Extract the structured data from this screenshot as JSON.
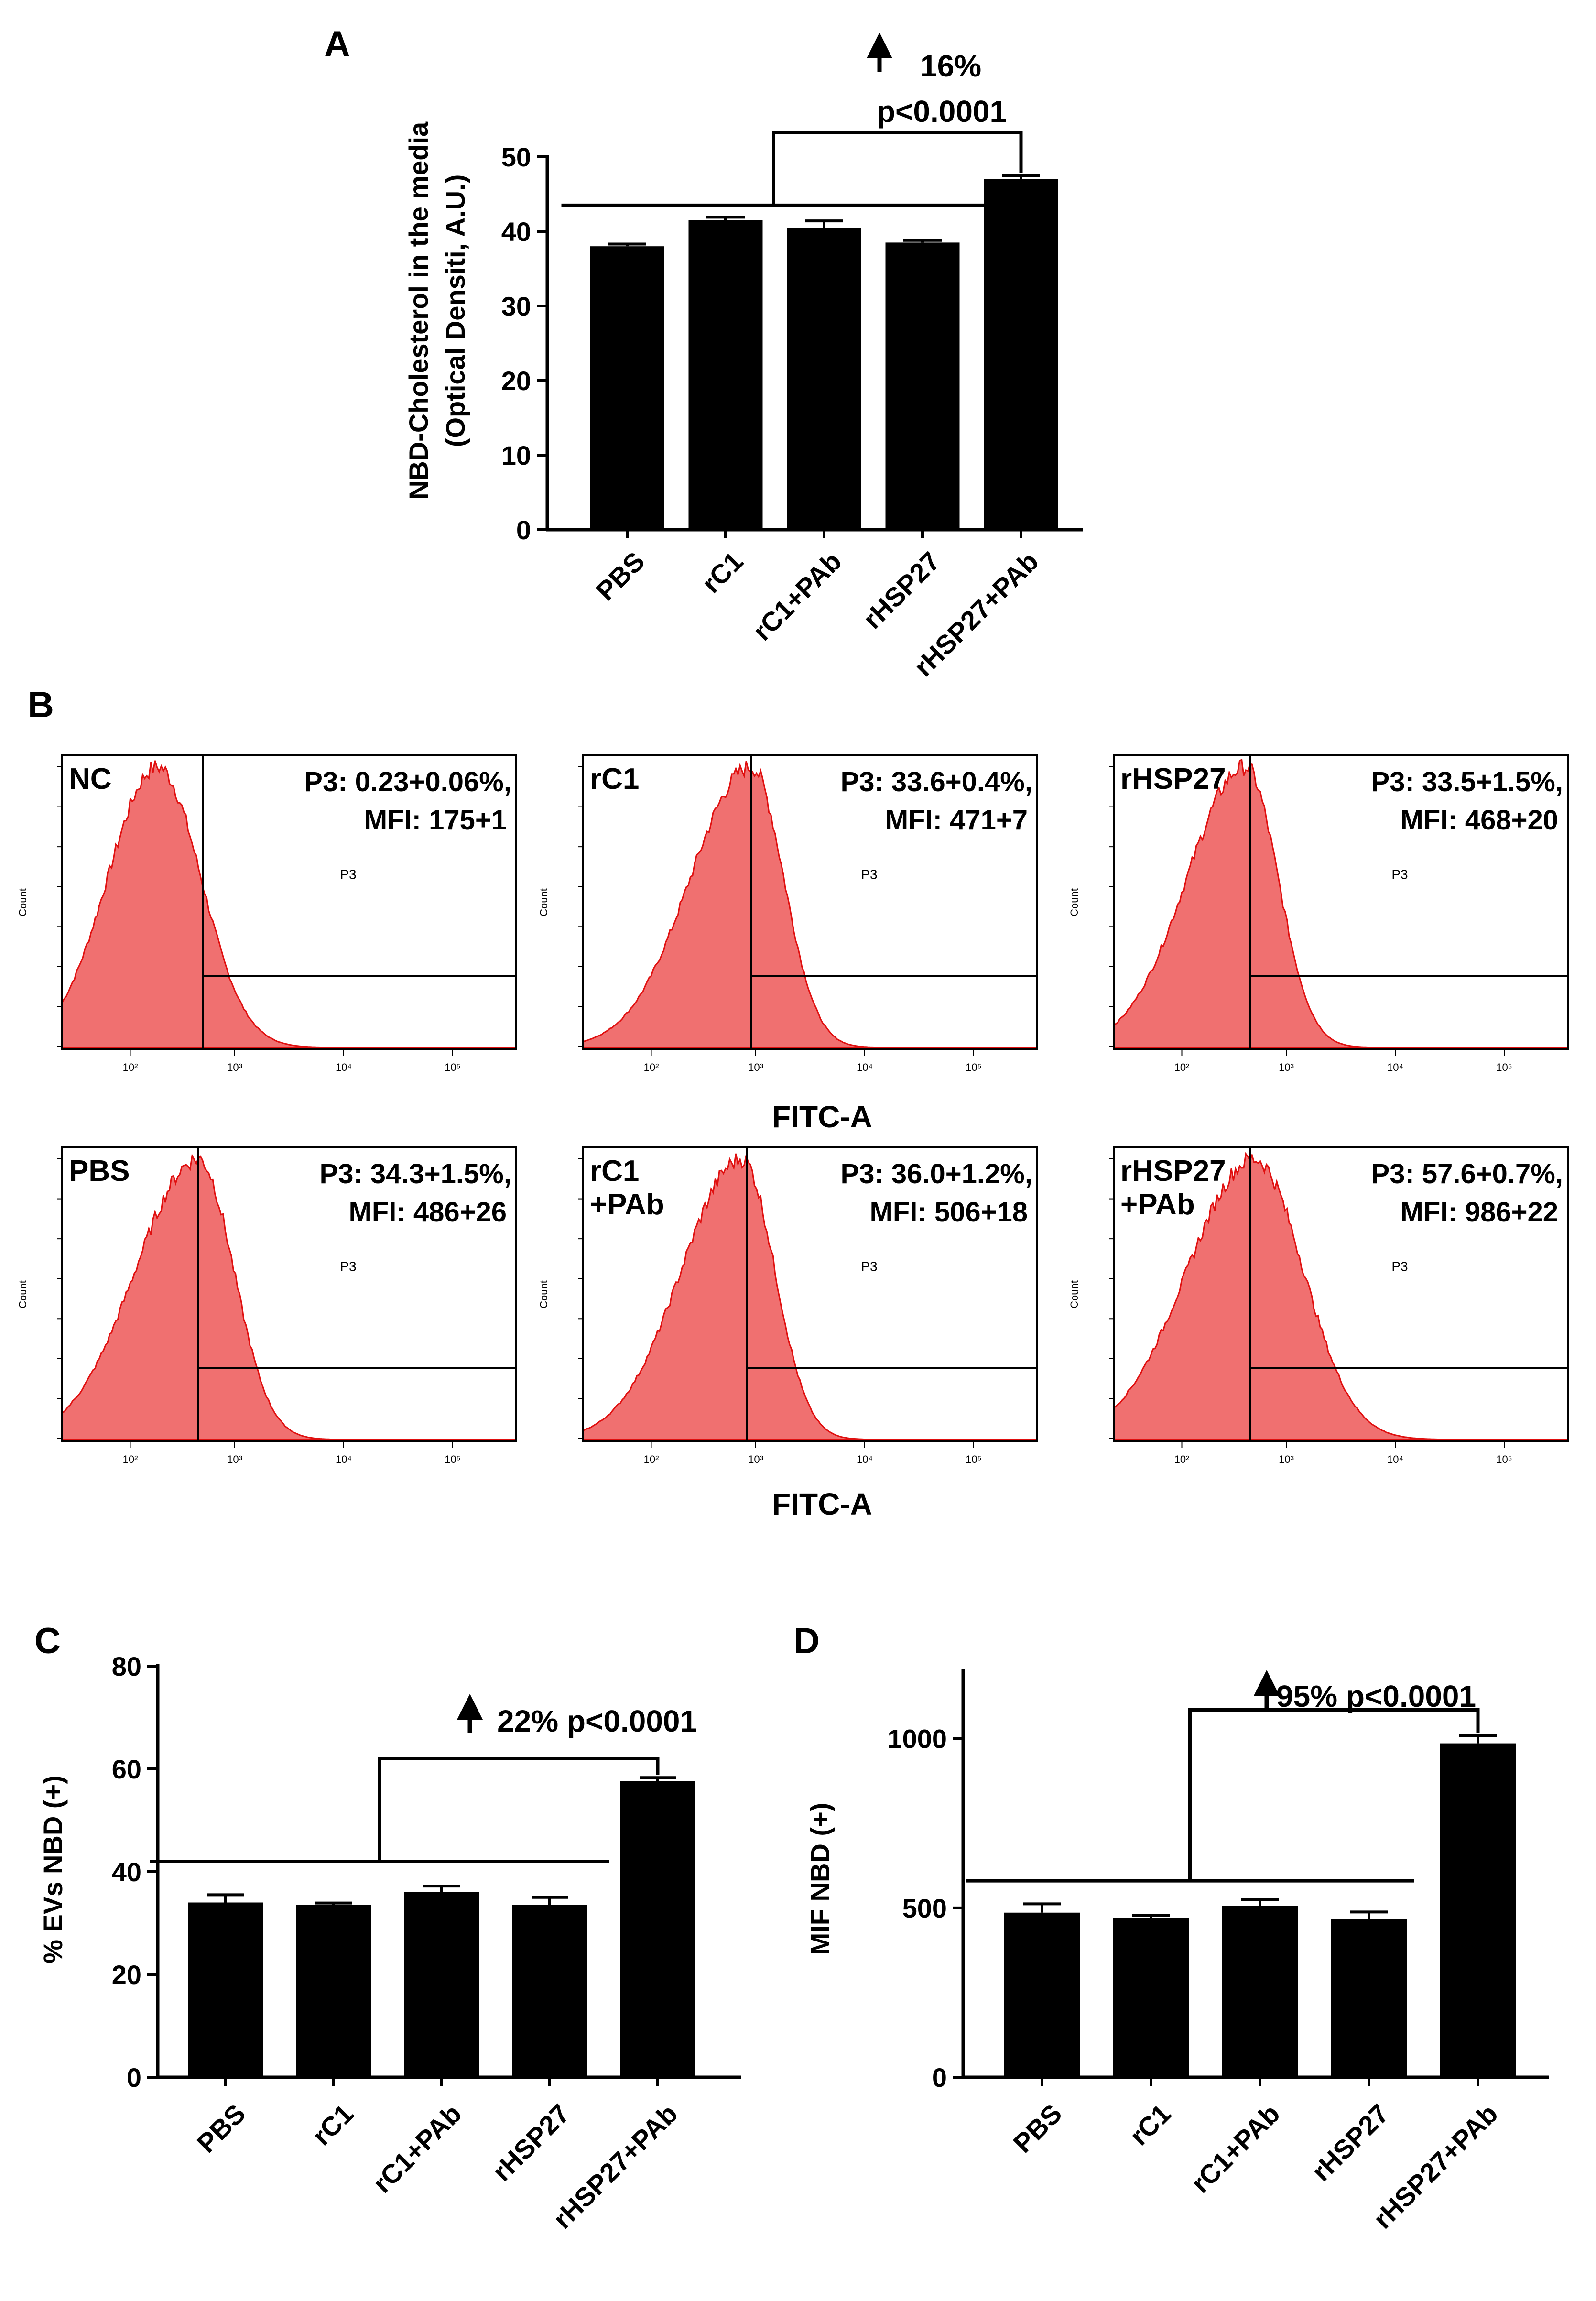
{
  "chart_data": [
    {
      "panel": "A",
      "type": "bar",
      "categories": [
        "PBS",
        "rC1",
        "rC1+PAb",
        "rHSP27",
        "rHSP27+PAb"
      ],
      "values": [
        38,
        41.5,
        40.5,
        38.5,
        47
      ],
      "errors": [
        0.3,
        0.4,
        0.9,
        0.3,
        0.5
      ],
      "ylabel_line1": "NBD-Cholesterol in the media",
      "ylabel_line2": "(Optical Densiti, A.U.)",
      "ylim": [
        0,
        50
      ],
      "yticks": [
        "0",
        "10",
        "20",
        "30",
        "40",
        "50"
      ],
      "annotation_line1": "16%",
      "annotation_line2": "p<0.0001",
      "arrow": "up-arrow-icon"
    },
    {
      "panel": "C",
      "type": "bar",
      "categories": [
        "PBS",
        "rC1",
        "rC1+PAb",
        "rHSP27",
        "rHSP27+PAb"
      ],
      "values": [
        34,
        33.5,
        36,
        33.5,
        57.6
      ],
      "errors": [
        1.5,
        0.4,
        1.2,
        1.5,
        0.7
      ],
      "ylabel": "% EVs NBD (+)",
      "ylim": [
        0,
        80
      ],
      "yticks": [
        "0",
        "20",
        "40",
        "60",
        "80"
      ],
      "annotation": "22% p<0.0001",
      "arrow": "up-arrow-icon"
    },
    {
      "panel": "D",
      "type": "bar",
      "categories": [
        "PBS",
        "rC1",
        "rC1+PAb",
        "rHSP27",
        "rHSP27+PAb"
      ],
      "values": [
        486,
        471,
        506,
        468,
        986
      ],
      "errors": [
        26,
        7,
        18,
        20,
        22
      ],
      "ylabel": "MIF NBD (+)",
      "ylim": [
        0,
        1200
      ],
      "yticks": [
        "0",
        "500",
        "1000"
      ],
      "annotation": "95% p<0.0001",
      "arrow": "up-arrow-icon"
    }
  ],
  "panel_b": {
    "letter": "B",
    "xlabel": "FITC-A",
    "y_axis_label": "Count",
    "gate": "P3",
    "x_ticks": [
      "10²",
      "10³",
      "10⁴",
      "10⁵"
    ],
    "histograms": [
      {
        "label": "NC",
        "label2": "",
        "stat1": "P3: 0.23+0.06%,",
        "stat2": "MFI: 175+1",
        "peak_position": "10²–10³"
      },
      {
        "label": "rC1",
        "label2": "",
        "stat1": "P3: 33.6+0.4%,",
        "stat2": "MFI: 471+7",
        "peak_position": "~10³"
      },
      {
        "label": "rHSP27",
        "label2": "",
        "stat1": "P3: 33.5+1.5%,",
        "stat2": "MFI: 468+20",
        "peak_position": "~10³"
      },
      {
        "label": "PBS",
        "label2": "",
        "stat1": "P3: 34.3+1.5%,",
        "stat2": "MFI: 486+26",
        "peak_position": "~10³"
      },
      {
        "label": "rC1",
        "label2": "+PAb",
        "stat1": "P3: 36.0+1.2%,",
        "stat2": "MFI: 506+18",
        "peak_position": "~10³"
      },
      {
        "label": "rHSP27",
        "label2": "+PAb",
        "stat1": "P3: 57.6+0.7%,",
        "stat2": "MFI: 986+22",
        "peak_position": "~10³"
      }
    ]
  },
  "colors": {
    "bar": "#000000",
    "histogram_fill": "#f07070",
    "histogram_stroke": "#e01010"
  }
}
